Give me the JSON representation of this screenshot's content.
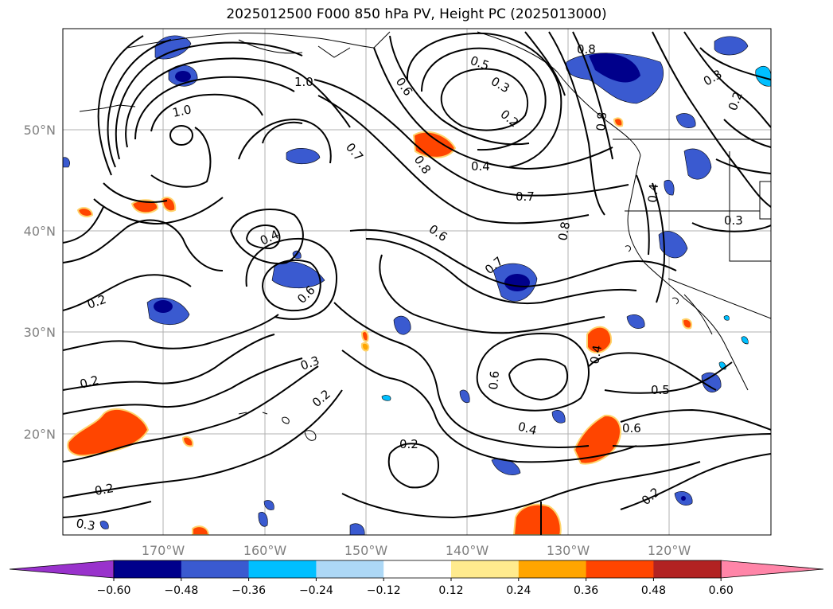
{
  "title": "2025012500 F000 850 hPa PV, Height PC (2025013000)",
  "map": {
    "lat_labels": [
      "50°N",
      "40°N",
      "30°N",
      "20°N"
    ],
    "lon_labels": [
      "170°W",
      "160°W",
      "150°W",
      "140°W",
      "130°W",
      "120°W"
    ],
    "contour_labels": [
      "1.0",
      "1.0",
      "0.6",
      "0.5",
      "0.3",
      "0.2",
      "0.8",
      "0.4",
      "0.7",
      "0.7",
      "0.6",
      "0.4",
      "0.6",
      "0.2",
      "0.2",
      "0.3",
      "0.2",
      "0.7",
      "0.6",
      "0.5",
      "0.4",
      "0.6",
      "0.2",
      "0.2",
      "0.2",
      "0.3",
      "0.3",
      "0.2",
      "0.4",
      "0.8",
      "0.3",
      "0.8",
      "0.8",
      "0.4"
    ]
  },
  "colorbar": {
    "ticks": [
      "−0.60",
      "−0.48",
      "−0.36",
      "−0.24",
      "−0.12",
      "0.12",
      "0.24",
      "0.36",
      "0.48",
      "0.60"
    ],
    "colors": [
      "#9932cc",
      "#00008b",
      "#3a5ad0",
      "#00bfff",
      "#add8f6",
      "#ffffff",
      "#ffeb8e",
      "#ffa500",
      "#ff4500",
      "#b22222",
      "#ff85a8"
    ]
  }
}
